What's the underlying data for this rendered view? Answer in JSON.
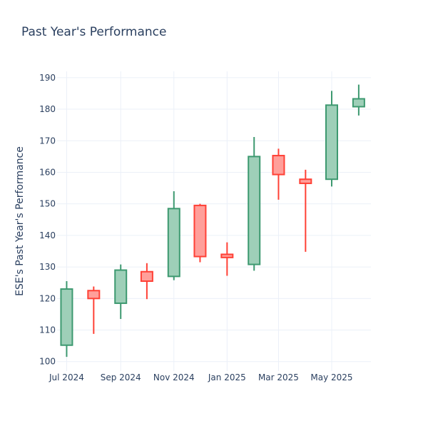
{
  "chart_data": {
    "type": "candlestick",
    "title": "Past Year's Performance",
    "xlabel": "",
    "ylabel": "ESE's Past Year's Performance",
    "ylim": [
      97,
      192
    ],
    "y_ticks": [
      100,
      110,
      120,
      130,
      140,
      150,
      160,
      170,
      180,
      190
    ],
    "x_ticks": [
      "2024-07-01",
      "2024-09-01",
      "2024-11-01",
      "2025-01-01",
      "2025-03-01",
      "2025-05-01"
    ],
    "x_tick_labels": [
      "Jul 2024",
      "Sep 2024",
      "Nov 2024",
      "Jan 2025",
      "Mar 2025",
      "May 2025"
    ],
    "xlim": [
      "2024-06-20",
      "2025-06-15"
    ],
    "grid": true,
    "colors": {
      "increasing_line": "#3d9970",
      "increasing_fill": "#9ecfb8",
      "decreasing_line": "#ff4136",
      "decreasing_fill": "#ff9f9a"
    },
    "candles": [
      {
        "date": "2024-07-01",
        "open": 105.2,
        "high": 125.5,
        "low": 101.5,
        "close": 123.0
      },
      {
        "date": "2024-08-01",
        "open": 122.5,
        "high": 123.8,
        "low": 108.8,
        "close": 120.0
      },
      {
        "date": "2024-09-01",
        "open": 118.5,
        "high": 130.8,
        "low": 113.5,
        "close": 129.0
      },
      {
        "date": "2024-10-01",
        "open": 128.5,
        "high": 131.2,
        "low": 119.8,
        "close": 125.5
      },
      {
        "date": "2024-11-01",
        "open": 127.0,
        "high": 154.0,
        "low": 125.8,
        "close": 148.5
      },
      {
        "date": "2024-12-01",
        "open": 149.5,
        "high": 150.0,
        "low": 131.5,
        "close": 133.3
      },
      {
        "date": "2025-01-01",
        "open": 134.0,
        "high": 137.8,
        "low": 127.2,
        "close": 133.0
      },
      {
        "date": "2025-02-01",
        "open": 130.8,
        "high": 171.2,
        "low": 128.8,
        "close": 165.0
      },
      {
        "date": "2025-03-01",
        "open": 165.3,
        "high": 167.5,
        "low": 151.3,
        "close": 159.3
      },
      {
        "date": "2025-04-01",
        "open": 157.8,
        "high": 160.8,
        "low": 134.8,
        "close": 156.5
      },
      {
        "date": "2025-05-01",
        "open": 157.8,
        "high": 185.8,
        "low": 155.5,
        "close": 181.3
      },
      {
        "date": "2025-06-01",
        "open": 180.8,
        "high": 187.8,
        "low": 178.0,
        "close": 183.3
      }
    ]
  }
}
